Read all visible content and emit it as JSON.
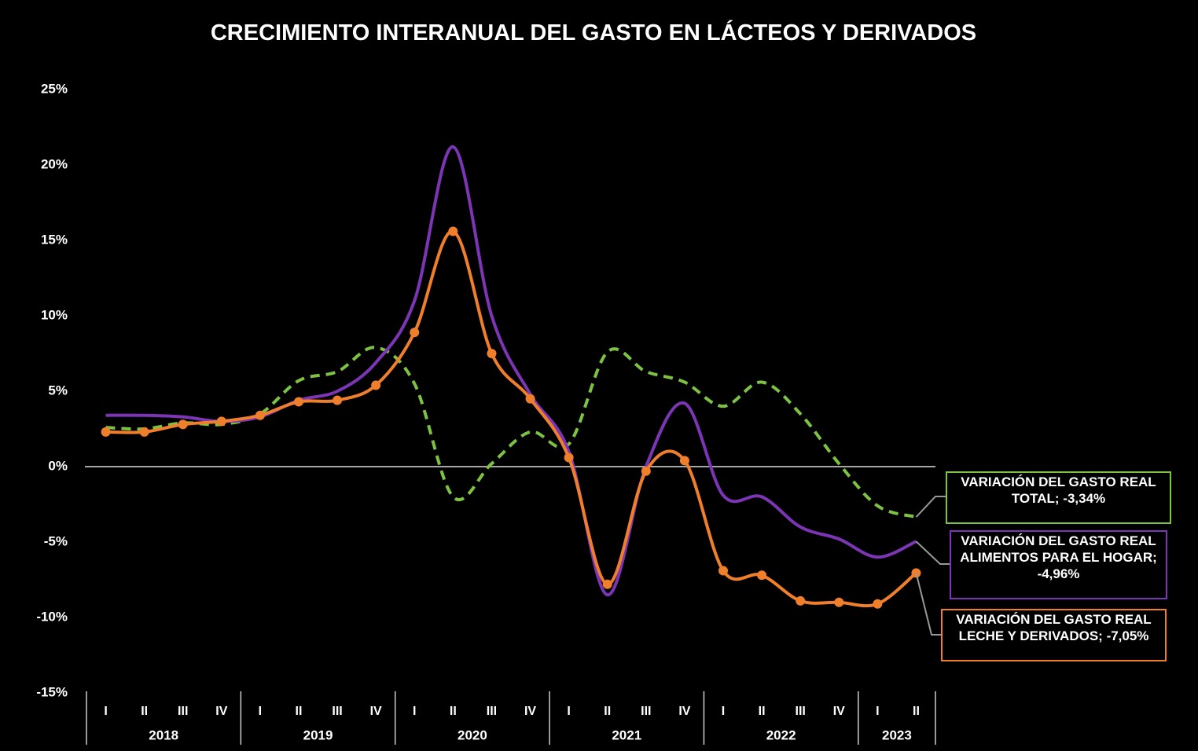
{
  "chart_data": {
    "type": "line",
    "title": "CRECIMIENTO INTERANUAL DEL GASTO EN LÁCTEOS Y DERIVADOS",
    "categories": [
      "I",
      "II",
      "III",
      "IV",
      "I",
      "II",
      "III",
      "IV",
      "I",
      "II",
      "III",
      "IV",
      "I",
      "II",
      "III",
      "IV",
      "I",
      "II",
      "III",
      "IV",
      "I",
      "II"
    ],
    "groups": [
      {
        "label": "2018",
        "size": 4
      },
      {
        "label": "2019",
        "size": 4
      },
      {
        "label": "2020",
        "size": 4
      },
      {
        "label": "2021",
        "size": 4
      },
      {
        "label": "2022",
        "size": 4
      },
      {
        "label": "2023",
        "size": 2
      }
    ],
    "ylim": [
      -15,
      25
    ],
    "yticks": [
      {
        "value": -15,
        "label": "-15%"
      },
      {
        "value": -10,
        "label": "-10%"
      },
      {
        "value": -5,
        "label": "-5%"
      },
      {
        "value": 0,
        "label": "0%"
      },
      {
        "value": 5,
        "label": "5%"
      },
      {
        "value": 10,
        "label": "10%"
      },
      {
        "value": 15,
        "label": "15%"
      },
      {
        "value": 20,
        "label": "20%"
      },
      {
        "value": 25,
        "label": "25%"
      }
    ],
    "grid": false,
    "label_separator": "; ",
    "series": [
      {
        "name": "VARIACIÓN DEL GASTO REAL TOTAL",
        "color": "#7dc242",
        "dashed": true,
        "markers": false,
        "values": [
          2.6,
          2.5,
          2.9,
          2.8,
          3.5,
          5.7,
          6.3,
          7.9,
          5.5,
          -2.0,
          0.2,
          2.3,
          1.5,
          7.6,
          6.3,
          5.6,
          4.0,
          5.6,
          3.5,
          0.2,
          -2.6,
          -3.34
        ],
        "value_labels": [
          null,
          null,
          null,
          null,
          null,
          null,
          null,
          null,
          null,
          null,
          null,
          null,
          null,
          null,
          null,
          null,
          null,
          null,
          null,
          null,
          null,
          "-3,34%"
        ]
      },
      {
        "name": "VARIACIÓN DEL GASTO REAL ALIMENTOS PARA EL HOGAR",
        "color": "#7b35b5",
        "dashed": false,
        "markers": false,
        "values": [
          3.4,
          3.4,
          3.3,
          3.0,
          3.3,
          4.4,
          5.0,
          6.9,
          11.0,
          21.2,
          10.0,
          4.8,
          1.0,
          -8.5,
          0.0,
          4.2,
          -1.9,
          -2.0,
          -4.0,
          -4.8,
          -6.0,
          -4.96
        ],
        "value_labels": [
          null,
          null,
          null,
          null,
          null,
          null,
          null,
          null,
          null,
          null,
          null,
          null,
          null,
          null,
          null,
          null,
          null,
          null,
          null,
          null,
          null,
          "-4,96%"
        ]
      },
      {
        "name": "VARIACIÓN DEL GASTO REAL LECHE Y DERIVADOS",
        "color": "#f07f2c",
        "dashed": false,
        "markers": true,
        "values": [
          2.3,
          2.3,
          2.8,
          3.0,
          3.4,
          4.3,
          4.4,
          5.4,
          8.9,
          15.6,
          7.5,
          4.5,
          0.6,
          -7.8,
          -0.3,
          0.4,
          -6.9,
          -7.2,
          -8.9,
          -9.0,
          -9.1,
          -7.05
        ],
        "value_labels": [
          null,
          null,
          null,
          null,
          null,
          null,
          null,
          null,
          null,
          null,
          null,
          null,
          null,
          null,
          null,
          null,
          null,
          null,
          null,
          null,
          null,
          "-7,05%"
        ]
      }
    ]
  }
}
